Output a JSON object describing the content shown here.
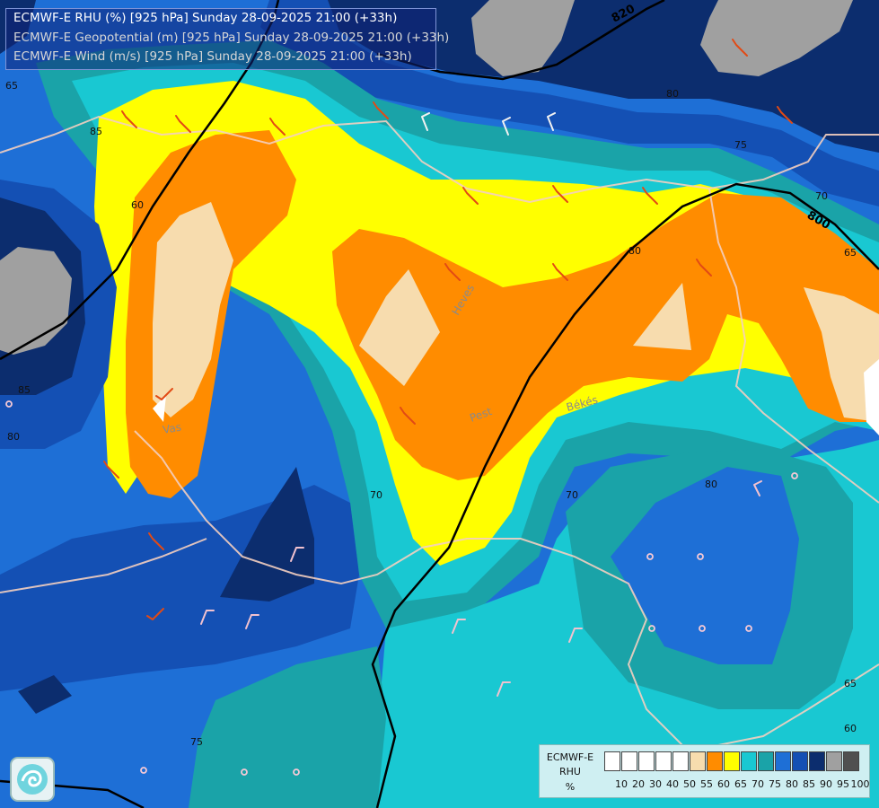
{
  "title": {
    "line1": "ECMWF-E RHU (%) [925 hPa] Sunday 28-09-2025 21:00 (+33h)",
    "line2": "ECMWF-E Geopotential (m) [925 hPa] Sunday 28-09-2025 21:00 (+33h)",
    "line3": "ECMWF-E Wind (m/s) [925 hPa] Sunday 28-09-2025 21:00 (+33h)"
  },
  "legend": {
    "model": "ECMWF-E",
    "field": "RHU",
    "unit": "%",
    "ticks": [
      "10",
      "20",
      "30",
      "40",
      "50",
      "55",
      "60",
      "65",
      "70",
      "75",
      "80",
      "85",
      "90",
      "95",
      "100"
    ],
    "colors": [
      "#ffffff",
      "#ffffff",
      "#ffffff",
      "#ffffff",
      "#ffffff",
      "#f7dcae",
      "#ff8c00",
      "#ffff00",
      "#19c8d2",
      "#1aa3a8",
      "#1e6fd6",
      "#1450b4",
      "#0c2d6e",
      "#a0a0a0",
      "#505050"
    ]
  },
  "map": {
    "geopotential_labels": [
      "820",
      "800"
    ],
    "rhu_labels": [
      "65",
      "85",
      "60",
      "80",
      "75",
      "70",
      "80",
      "70",
      "80",
      "70",
      "60",
      "65",
      "85",
      "80",
      "75",
      "65"
    ],
    "place_labels": [
      "Vas",
      "Heves",
      "Pest",
      "Békés"
    ],
    "colors": {
      "gray": "#a0a0a0",
      "navy": "#0c2d6e",
      "dark_blue": "#1450b4",
      "blue": "#1e6fd6",
      "teal": "#1aa3a8",
      "cyan": "#19c8d2",
      "yellow": "#ffff00",
      "orange": "#ff8c00",
      "beige": "#f7dcae"
    }
  }
}
